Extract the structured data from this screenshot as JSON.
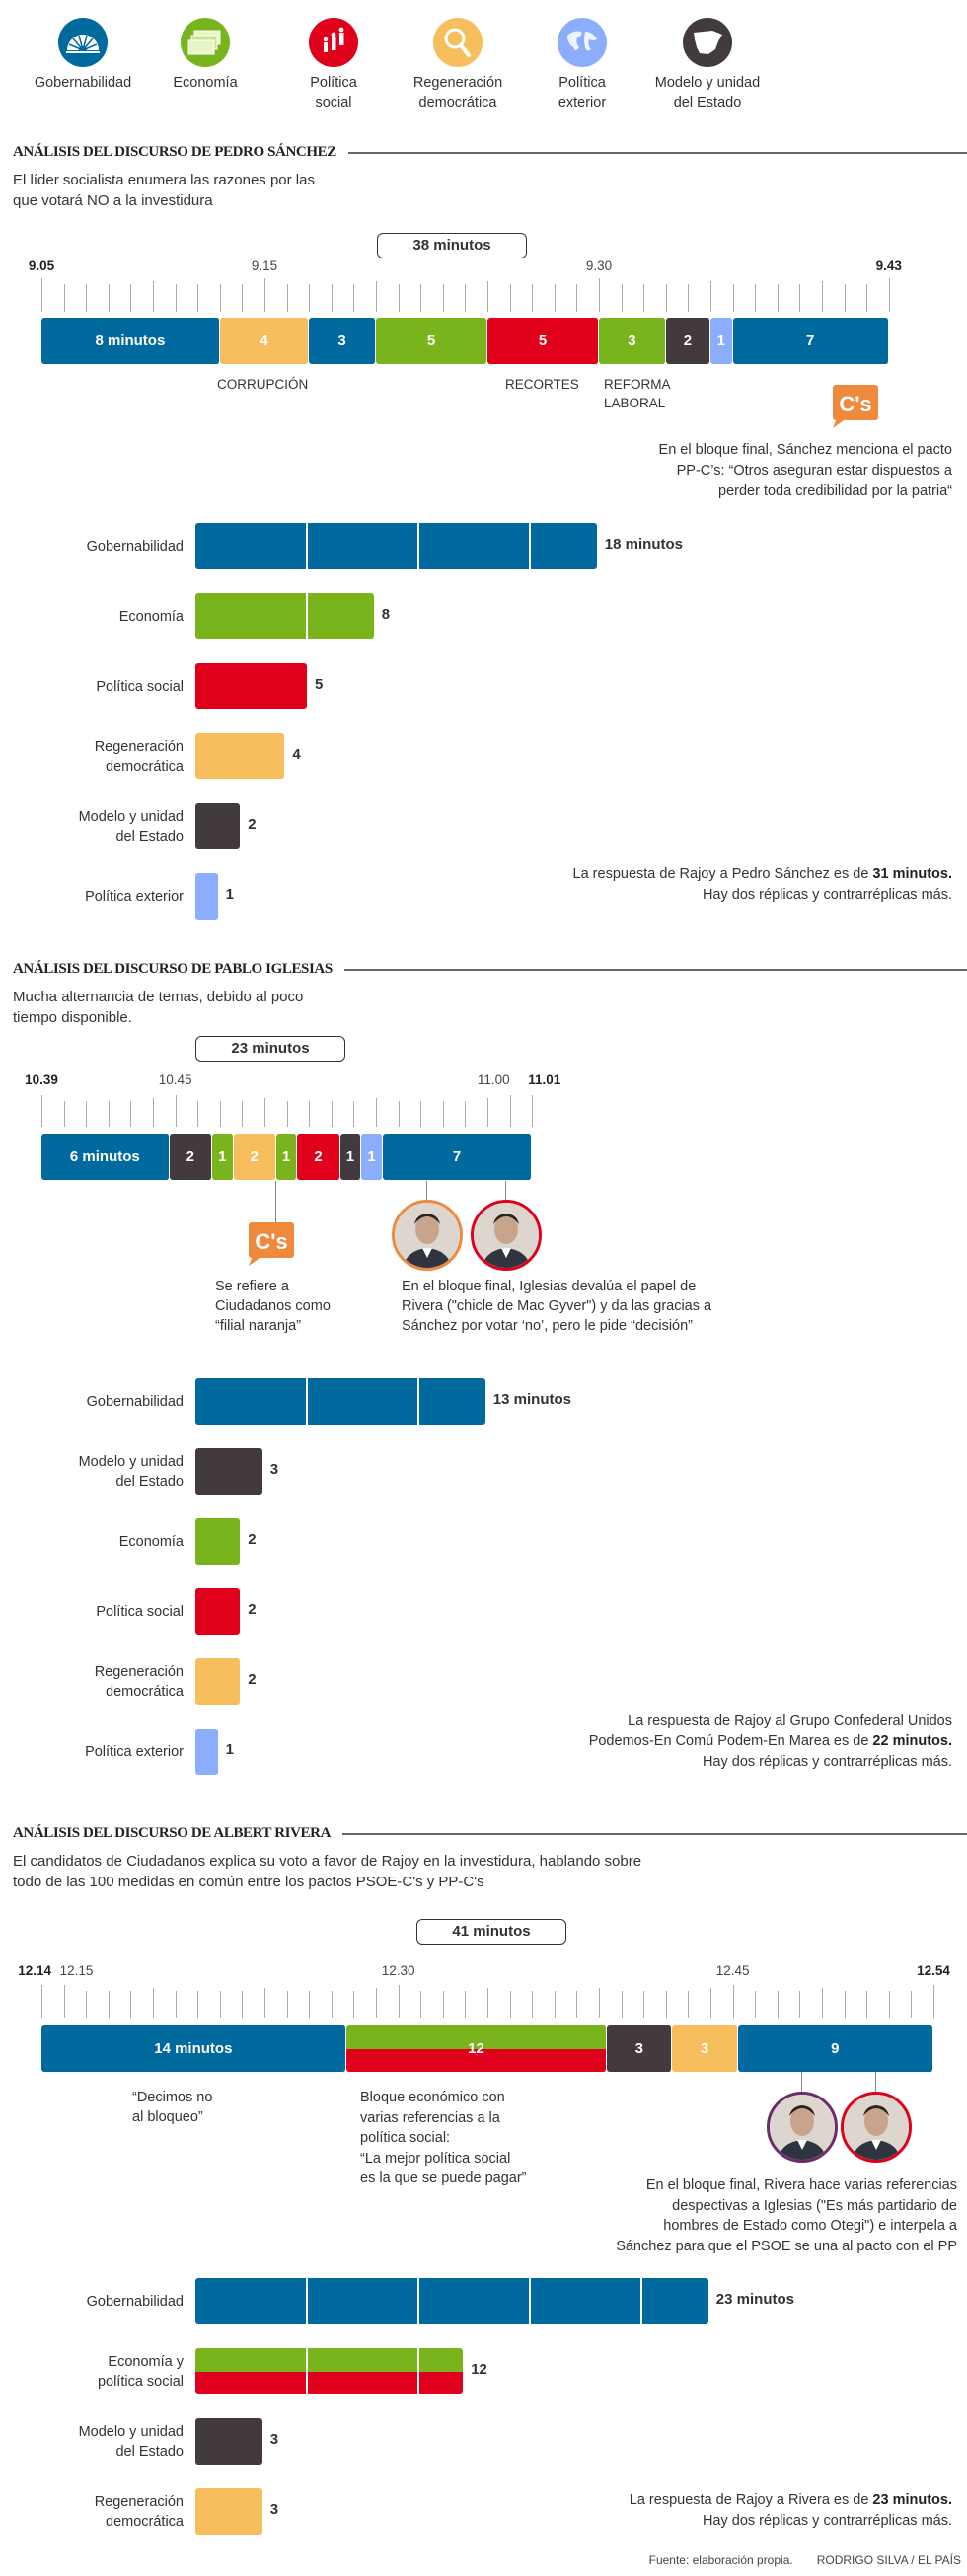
{
  "colors": {
    "gobernabilidad": "#00699e",
    "economia": "#7ab41d",
    "politica_social": "#e0001b",
    "regeneracion": "#f7be5e",
    "exterior": "#8cadfb",
    "modelo": "#423a3e",
    "cs": "#ef8a3c",
    "iglesias_ring": "#6b2c6b"
  },
  "legend": [
    {
      "label": "Gobernabilidad",
      "icon": "parliament-icon",
      "color": "#00699e"
    },
    {
      "label": "Economía",
      "icon": "banknotes-icon",
      "color": "#7ab41d"
    },
    {
      "label": "Política\nsocial",
      "icon": "people-icon",
      "color": "#e0001b"
    },
    {
      "label": "Regeneración\ndemocrática",
      "icon": "magnifier-icon",
      "color": "#f7be5e"
    },
    {
      "label": "Política\nexterior",
      "icon": "globe-icon",
      "color": "#8cadfb"
    },
    {
      "label": "Modelo y unidad\ndel Estado",
      "icon": "spain-map-icon",
      "color": "#423a3e"
    }
  ],
  "cs_logo": "C's",
  "sections": [
    {
      "title": "ANÁLISIS DEL DISCURSO DE PEDRO SÁNCHEZ",
      "subtitle": "El líder socialista enumera las razones por las\nque votará NO a la investidura",
      "total_label": "38 minutos",
      "span_minutes": 38,
      "times": [
        {
          "label": "9.05",
          "minute": 0,
          "bold": true
        },
        {
          "label": "9.15",
          "minute": 10,
          "bold": false
        },
        {
          "label": "9.30",
          "minute": 25,
          "bold": false
        },
        {
          "label": "9.43",
          "minute": 38,
          "bold": true
        }
      ],
      "segments": [
        {
          "label": "8 minutos",
          "value": 8,
          "topic": "gobernabilidad"
        },
        {
          "label": "4",
          "value": 4,
          "topic": "regeneracion"
        },
        {
          "label": "3",
          "value": 3,
          "topic": "gobernabilidad"
        },
        {
          "label": "5",
          "value": 5,
          "topic": "economia"
        },
        {
          "label": "5",
          "value": 5,
          "topic": "politica_social"
        },
        {
          "label": "3",
          "value": 3,
          "topic": "economia"
        },
        {
          "label": "2",
          "value": 2,
          "topic": "modelo"
        },
        {
          "label": "1",
          "value": 1,
          "topic": "exterior"
        },
        {
          "label": "7",
          "value": 7,
          "topic": "gobernabilidad"
        }
      ],
      "annotations": {
        "corrupcion": "Corrupción",
        "recortes": "Recortes",
        "reforma_laboral": "Reforma\nlaboral",
        "final": "En el bloque final, Sánchez menciona el pacto\nPP-C’s: “Otros aseguran estar dispuestos a\nperder toda credibilidad por la patria“"
      },
      "bars": [
        {
          "label": "Gobernabilidad",
          "value": 18,
          "value_label": "18 minutos",
          "topic": "gobernabilidad"
        },
        {
          "label": "Economía",
          "value": 8,
          "value_label": "8",
          "topic": "economia"
        },
        {
          "label": "Política social",
          "value": 5,
          "value_label": "5",
          "topic": "politica_social"
        },
        {
          "label": "Regeneración\ndemocrática",
          "value": 4,
          "value_label": "4",
          "topic": "regeneracion"
        },
        {
          "label": "Modelo y unidad\ndel Estado",
          "value": 2,
          "value_label": "2",
          "topic": "modelo"
        },
        {
          "label": "Política exterior",
          "value": 1,
          "value_label": "1",
          "topic": "exterior"
        }
      ],
      "note": {
        "lead": "La respuesta de Rajoy a Pedro Sánchez es de ",
        "bold": "31 minutos.",
        "tail": "\nHay dos réplicas y contrarréplicas más."
      }
    },
    {
      "title": "ANÁLISIS DEL DISCURSO DE PABLO IGLESIAS",
      "subtitle": "Mucha alternancia de temas, debido al poco\ntiempo disponible.",
      "total_label": "23 minutos",
      "span_minutes": 22,
      "times": [
        {
          "label": "10.39",
          "minute": 0,
          "bold": true
        },
        {
          "label": "10.45",
          "minute": 6,
          "bold": false
        },
        {
          "label": "11.00",
          "minute": 21,
          "bold": false
        },
        {
          "label": "11.01",
          "minute": 22,
          "bold": true
        }
      ],
      "segments": [
        {
          "label": "6 minutos",
          "value": 6,
          "topic": "gobernabilidad"
        },
        {
          "label": "2",
          "value": 2,
          "topic": "modelo"
        },
        {
          "label": "1",
          "value": 1,
          "topic": "economia"
        },
        {
          "label": "2",
          "value": 2,
          "topic": "regeneracion"
        },
        {
          "label": "1",
          "value": 1,
          "topic": "economia"
        },
        {
          "label": "2",
          "value": 2,
          "topic": "politica_social"
        },
        {
          "label": "1",
          "value": 1,
          "topic": "modelo"
        },
        {
          "label": "1",
          "value": 1,
          "topic": "exterior"
        },
        {
          "label": "7",
          "value": 7,
          "topic": "gobernabilidad"
        }
      ],
      "annotations": {
        "cs_note": "Se refiere a\nCiudadanos como\n“filial naranja”",
        "final": "En el bloque final, Iglesias devalúa el papel de\nRivera (\"chicle de Mac Gyver\") y da las gracias a\nSánchez por votar ‘no’, pero le pide “decisión”"
      },
      "bars": [
        {
          "label": "Gobernabilidad",
          "value": 13,
          "value_label": "13 minutos",
          "topic": "gobernabilidad"
        },
        {
          "label": "Modelo y unidad\ndel Estado",
          "value": 3,
          "value_label": "3",
          "topic": "modelo"
        },
        {
          "label": "Economía",
          "value": 2,
          "value_label": "2",
          "topic": "economia"
        },
        {
          "label": "Política social",
          "value": 2,
          "value_label": "2",
          "topic": "politica_social"
        },
        {
          "label": "Regeneración\ndemocrática",
          "value": 2,
          "value_label": "2",
          "topic": "regeneracion"
        },
        {
          "label": "Política exterior",
          "value": 1,
          "value_label": "1",
          "topic": "exterior"
        }
      ],
      "note": {
        "lead": "La respuesta de Rajoy al Grupo Confederal Unidos\nPodemos-En Comú Podem-En Marea es de ",
        "bold": "22 minutos.",
        "tail": "\nHay dos réplicas y contrarréplicas más."
      }
    },
    {
      "title": "ANÁLISIS DEL DISCURSO DE ALBERT RIVERA",
      "subtitle": "El candidatos de Ciudadanos explica su voto a favor de Rajoy en la investidura, hablando sobre\ntodo de las 100 medidas en común entre los pactos PSOE-C's y PP-C's",
      "total_label": "41 minutos",
      "span_minutes": 40,
      "times": [
        {
          "label": "12.14",
          "minute": 0,
          "bold": true
        },
        {
          "label": "12.15",
          "minute": 1,
          "bold": false
        },
        {
          "label": "12.30",
          "minute": 16,
          "bold": false
        },
        {
          "label": "12.45",
          "minute": 31,
          "bold": false
        },
        {
          "label": "12.54",
          "minute": 40,
          "bold": true
        }
      ],
      "segments": [
        {
          "label": "14 minutos",
          "value": 14,
          "topic": "gobernabilidad"
        },
        {
          "label": "12",
          "value": 12,
          "topics": [
            "economia",
            "politica_social"
          ]
        },
        {
          "label": "3",
          "value": 3,
          "topic": "modelo"
        },
        {
          "label": "3",
          "value": 3,
          "topic": "regeneracion"
        },
        {
          "label": "9",
          "value": 9,
          "topic": "gobernabilidad"
        }
      ],
      "annotations": {
        "bloqueo": "“Decimos no\nal bloqueo”",
        "economico": "Bloque económico con\nvarias referencias a la\npolítica social:\n“La mejor política social\nes la que se puede pagar”",
        "final": "En el bloque final, Rivera hace varias referencias\ndespectivas a Iglesias (\"Es más partidario de\nhombres de Estado como Otegi\") e interpela a\nSánchez para que el PSOE se una al pacto con el PP"
      },
      "bars": [
        {
          "label": "Gobernabilidad",
          "value": 23,
          "value_label": "23 minutos",
          "topic": "gobernabilidad"
        },
        {
          "label": "Economía y\npolítica social",
          "value": 12,
          "value_label": "12",
          "topics": [
            "economia",
            "politica_social"
          ]
        },
        {
          "label": "Modelo y unidad\ndel Estado",
          "value": 3,
          "value_label": "3",
          "topic": "modelo"
        },
        {
          "label": "Regeneración\ndemocrática",
          "value": 3,
          "value_label": "3",
          "topic": "regeneracion"
        }
      ],
      "note": {
        "lead": "La respuesta de Rajoy a Rivera es de ",
        "bold": "23 minutos.",
        "tail": "\nHay dos réplicas y contrarréplicas más."
      }
    }
  ],
  "footer": {
    "source": "Fuente: elaboración propia.",
    "credit": "RODRIGO SILVA / EL PAÍS"
  },
  "chart_data": [
    {
      "type": "bar",
      "title": "Análisis del discurso de Pedro Sánchez",
      "categories": [
        "Gobernabilidad",
        "Economía",
        "Política social",
        "Regeneración democrática",
        "Modelo y unidad del Estado",
        "Política exterior"
      ],
      "values": [
        18,
        8,
        5,
        4,
        2,
        1
      ],
      "unit": "minutos"
    },
    {
      "type": "bar",
      "title": "Análisis del discurso de Pablo Iglesias",
      "categories": [
        "Gobernabilidad",
        "Modelo y unidad del Estado",
        "Economía",
        "Política social",
        "Regeneración democrática",
        "Política exterior"
      ],
      "values": [
        13,
        3,
        2,
        2,
        2,
        1
      ],
      "unit": "minutos"
    },
    {
      "type": "bar",
      "title": "Análisis del discurso de Albert Rivera",
      "categories": [
        "Gobernabilidad",
        "Economía y política social",
        "Modelo y unidad del Estado",
        "Regeneración democrática"
      ],
      "values": [
        23,
        12,
        3,
        3
      ],
      "unit": "minutos"
    }
  ]
}
